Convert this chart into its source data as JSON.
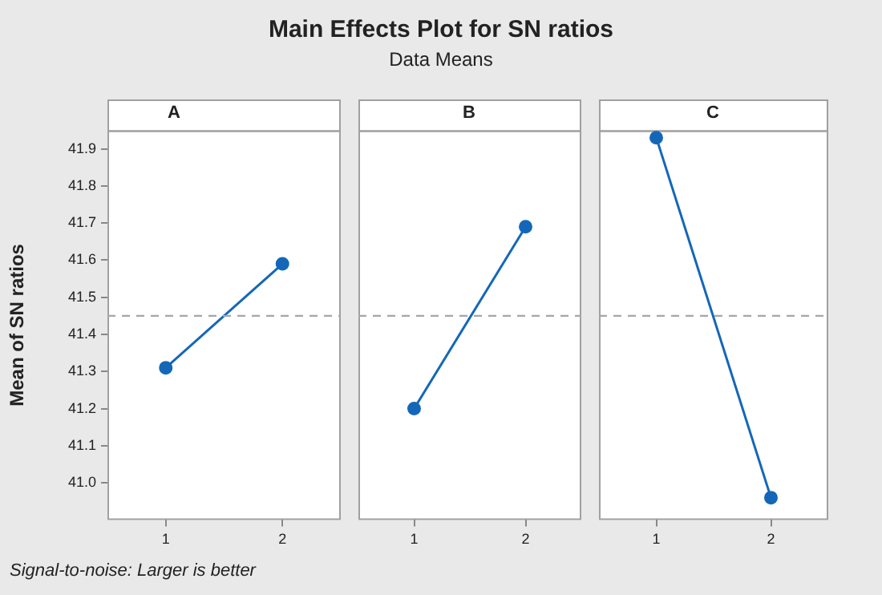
{
  "chart_data": [
    {
      "type": "other",
      "title": "Main Effects Plot for SN ratios",
      "subtitle": "Data Means",
      "annotations": [
        "Signal-to-noise: Larger is better"
      ]
    },
    {
      "type": "line",
      "title": "A",
      "ylabel": "Mean of SN ratios",
      "categories": [
        "1",
        "2"
      ],
      "values": [
        41.31,
        41.59
      ],
      "color": "#1467b8",
      "marker": "circle",
      "ylim": [
        40.9,
        41.95
      ],
      "yticks": [
        {
          "value": 41.0,
          "label": "41.0"
        },
        41.1,
        41.2,
        41.3,
        41.4,
        41.5,
        41.6,
        41.7,
        41.8,
        41.9
      ],
      "ref_lines": [
        {
          "axis": "y",
          "value": 41.45,
          "color": "#a6a6a6",
          "line_style": "dashed"
        }
      ],
      "grid": false
    },
    {
      "type": "line",
      "title": "B",
      "categories": [
        "1",
        "2"
      ],
      "values": [
        41.2,
        41.69
      ],
      "color": "#1467b8",
      "marker": "circle",
      "ylim": [
        40.9,
        41.95
      ],
      "tick_labels": "x",
      "ref_lines": [
        {
          "axis": "y",
          "value": 41.45,
          "color": "#a6a6a6",
          "line_style": "dashed"
        }
      ],
      "grid": false
    },
    {
      "type": "line",
      "title": "C",
      "categories": [
        "1",
        "2"
      ],
      "values": [
        41.93,
        40.96
      ],
      "color": "#1467b8",
      "marker": "circle",
      "ylim": [
        40.9,
        41.95
      ],
      "tick_labels": "x",
      "ref_lines": [
        {
          "axis": "y",
          "value": 41.45,
          "color": "#a6a6a6",
          "line_style": "dashed"
        }
      ],
      "grid": false
    }
  ]
}
